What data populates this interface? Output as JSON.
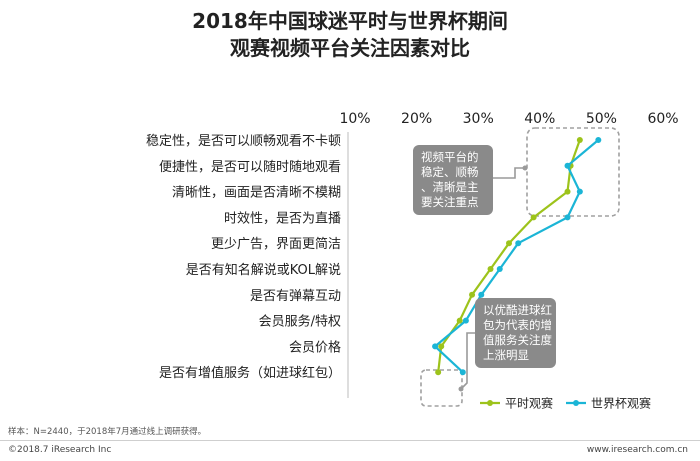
{
  "title": {
    "line1": "2018年中国球迷平时与世界杯期间",
    "line2": "观赛视频平台关注因素对比"
  },
  "chart_data": {
    "type": "line",
    "orientation": "horizontal-categories-on-y",
    "categories": [
      "稳定性，是否可以顺畅观看不卡顿",
      "便捷性，是否可以随时随地观看",
      "清晰性，画面是否清晰不模糊",
      "时效性，是否为直播",
      "更少广告，界面更简洁",
      "是否有知名解说或KOL解说",
      "是否有弹幕互动",
      "会员服务/特权",
      "会员价格",
      "是否有增值服务（如进球红包）"
    ],
    "x_ticks": [
      "10%",
      "20%",
      "30%",
      "40%",
      "50%",
      "60%"
    ],
    "xlim": [
      10,
      60
    ],
    "series": [
      {
        "name": "平时观赛",
        "color": "#9dc31b",
        "values": [
          46.5,
          45,
          44.5,
          39,
          35,
          32,
          29,
          27,
          24,
          23.5
        ]
      },
      {
        "name": "世界杯观赛",
        "color": "#1bb5d6",
        "values": [
          49.5,
          44.5,
          46.5,
          44.5,
          36.5,
          33.5,
          30.5,
          28,
          23,
          27.5
        ]
      }
    ],
    "annotations": [
      "视频平台的稳定、顺畅、清晰是主要关注重点",
      "以优酷进球红包为代表的增值服务关注度上涨明显"
    ],
    "legend_position": "bottom-right"
  },
  "footer": {
    "note": "样本：N=2440，于2018年7月通过线上调研获得。",
    "copyright": "©2018.7 iResearch Inc",
    "website": "www.iresearch.com.cn"
  },
  "colors": {
    "annotation_box": "#8a8a8a",
    "dashed_box": "#a0a0a0",
    "text": "#222222"
  }
}
